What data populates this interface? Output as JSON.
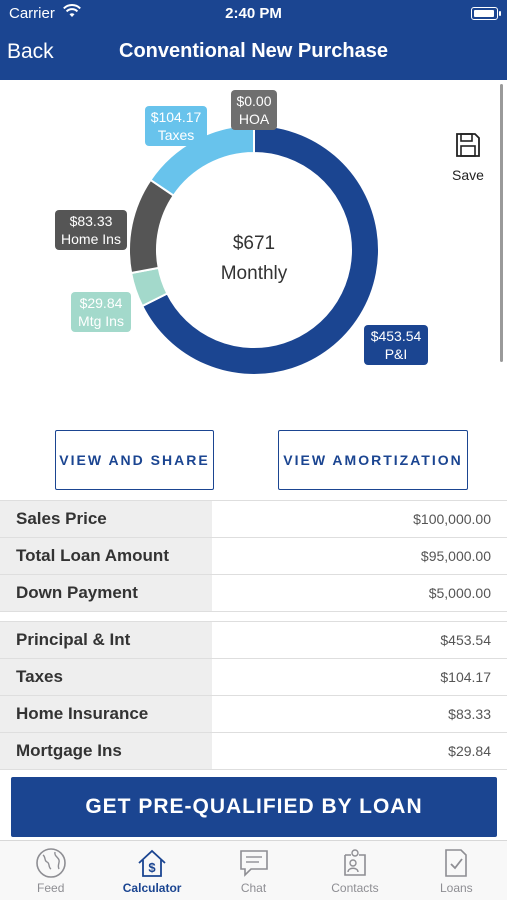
{
  "status": {
    "carrier": "Carrier",
    "time": "2:40 PM"
  },
  "header": {
    "back_label": "Back",
    "title": "Conventional New Purchase"
  },
  "colors": {
    "brand": "#1b4591",
    "taxes": "#68c3ec",
    "hoa": "#6f6f6f",
    "home_ins": "#555555",
    "mtg_ins": "#a3d9cb"
  },
  "chart_data": {
    "type": "pie",
    "style": "donut",
    "center_amount": "$671",
    "center_label": "Monthly",
    "slices": [
      {
        "key": "pi",
        "amount": "$453.54",
        "label": "P&I",
        "value": 453.54,
        "color": "#1b4591"
      },
      {
        "key": "mtg",
        "amount": "$29.84",
        "label": "Mtg Ins",
        "value": 29.84,
        "color": "#a3d9cb"
      },
      {
        "key": "home",
        "amount": "$83.33",
        "label": "Home Ins",
        "value": 83.33,
        "color": "#555555"
      },
      {
        "key": "taxes",
        "amount": "$104.17",
        "label": "Taxes",
        "value": 104.17,
        "color": "#68c3ec"
      },
      {
        "key": "hoa",
        "amount": "$0.00",
        "label": "HOA",
        "value": 0,
        "color": "#6f6f6f"
      }
    ]
  },
  "save_label": "Save",
  "buttons": {
    "view_share": "VIEW AND SHARE",
    "view_amortization": "VIEW AMORTIZATION"
  },
  "summary": [
    {
      "label": "Sales Price",
      "value": "$100,000.00"
    },
    {
      "label": "Total Loan Amount",
      "value": "$95,000.00"
    },
    {
      "label": "Down Payment",
      "value": "$5,000.00"
    }
  ],
  "breakdown": [
    {
      "label": "Principal & Int",
      "value": "$453.54"
    },
    {
      "label": "Taxes",
      "value": "$104.17"
    },
    {
      "label": "Home Insurance",
      "value": "$83.33"
    },
    {
      "label": "Mortgage Ins",
      "value": "$29.84"
    }
  ],
  "cta_label": "GET PRE-QUALIFIED BY LOAN",
  "tabs": [
    {
      "label": "Feed",
      "icon": "globe-icon"
    },
    {
      "label": "Calculator",
      "icon": "house-dollar-icon",
      "active": true
    },
    {
      "label": "Chat",
      "icon": "chat-bubble-icon"
    },
    {
      "label": "Contacts",
      "icon": "contacts-icon"
    },
    {
      "label": "Loans",
      "icon": "document-check-icon"
    }
  ]
}
